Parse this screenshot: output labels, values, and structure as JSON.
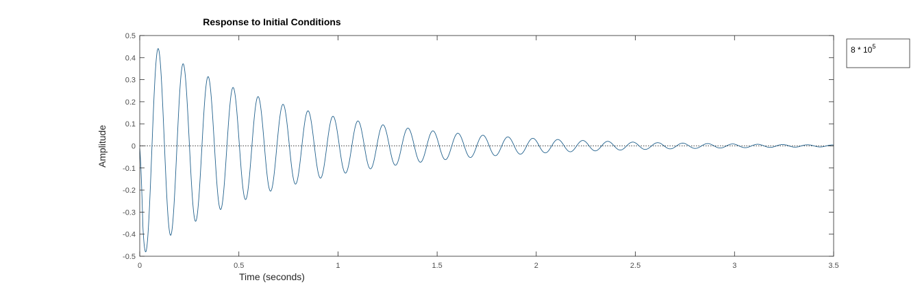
{
  "chart_data": {
    "type": "line",
    "title": "Response to Initial Conditions",
    "xlabel": "Time (seconds)",
    "ylabel": "Amplitude",
    "xlim": [
      0,
      3.5
    ],
    "ylim": [
      -0.5,
      0.5
    ],
    "xticks": [
      0,
      0.5,
      1,
      1.5,
      2,
      2.5,
      3,
      3.5
    ],
    "xtick_labels": [
      "0",
      "0.5",
      "1",
      "1.5",
      "2",
      "2.5",
      "3",
      "3.5"
    ],
    "yticks": [
      -0.5,
      -0.4,
      -0.3,
      -0.2,
      -0.1,
      0,
      0.1,
      0.2,
      0.3,
      0.4,
      0.5
    ],
    "ytick_labels": [
      "-0.5",
      "-0.4",
      "-0.3",
      "-0.2",
      "-0.1",
      "0",
      "0.1",
      "0.2",
      "0.3",
      "0.4",
      "0.5"
    ],
    "grid": false,
    "zero_line": "dotted",
    "legend": {
      "placement": "outside-top-right",
      "base": "8 * 10",
      "exponent": "5"
    },
    "series": [
      {
        "name": "8 * 10^5",
        "color": "#1f5f8b",
        "model": "damped-sinusoid",
        "amplitude": -0.5,
        "decay_rate": 1.35,
        "period_seconds": 0.126,
        "peaks": [
          {
            "x": 0.03,
            "y": -0.47
          },
          {
            "x": 0.095,
            "y": 0.43
          },
          {
            "x": 0.16,
            "y": -0.38
          },
          {
            "x": 0.22,
            "y": 0.35
          },
          {
            "x": 0.285,
            "y": -0.31
          },
          {
            "x": 0.35,
            "y": 0.29
          },
          {
            "x": 0.41,
            "y": -0.26
          },
          {
            "x": 0.475,
            "y": 0.23
          },
          {
            "x": 0.54,
            "y": -0.21
          },
          {
            "x": 0.6,
            "y": 0.19
          },
          {
            "x": 0.665,
            "y": -0.17
          },
          {
            "x": 0.73,
            "y": 0.155
          },
          {
            "x": 0.79,
            "y": -0.14
          },
          {
            "x": 0.855,
            "y": 0.13
          },
          {
            "x": 0.915,
            "y": -0.115
          },
          {
            "x": 0.98,
            "y": 0.105
          },
          {
            "x": 1.04,
            "y": -0.095
          },
          {
            "x": 1.105,
            "y": 0.085
          },
          {
            "x": 1.17,
            "y": -0.075
          },
          {
            "x": 1.235,
            "y": 0.07
          },
          {
            "x": 1.3,
            "y": -0.06
          },
          {
            "x": 1.36,
            "y": 0.055
          },
          {
            "x": 1.5,
            "y": 0.045
          },
          {
            "x": 1.75,
            "y": 0.03
          },
          {
            "x": 2.0,
            "y": 0.02
          },
          {
            "x": 2.5,
            "y": 0.01
          },
          {
            "x": 3.0,
            "y": 0.005
          },
          {
            "x": 3.5,
            "y": 0.0
          }
        ]
      }
    ]
  }
}
